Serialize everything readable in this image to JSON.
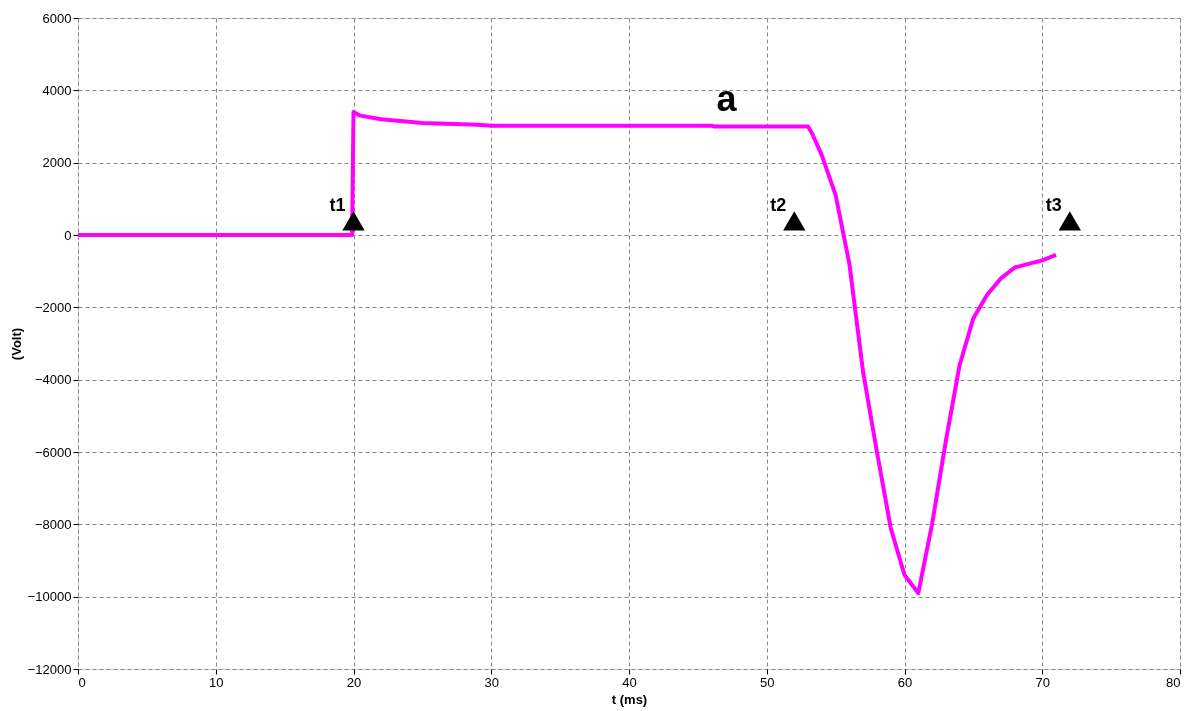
{
  "chart_data": {
    "type": "line",
    "xlabel": "t (ms)",
    "ylabel": "(Volt)",
    "xlim": [
      0,
      80
    ],
    "xticks": [
      0,
      10,
      20,
      30,
      40,
      50,
      60,
      70,
      80
    ],
    "ylim": [
      -12000,
      6000
    ],
    "yticks": [
      -12000,
      -10000,
      -8000,
      -6000,
      -4000,
      -2000,
      0,
      2000,
      4000,
      6000
    ],
    "grid": true,
    "series": [
      {
        "color": "#ff00ff",
        "marker": "none",
        "line_style": "solid",
        "x": [
          0,
          19.9,
          20,
          20.5,
          22,
          25,
          29,
          30,
          46,
          46.2,
          53,
          53.3,
          54,
          55,
          56,
          57,
          58,
          59,
          60,
          61,
          62,
          63,
          64,
          65,
          66,
          67,
          68,
          69,
          70,
          71
        ],
        "values": [
          0,
          0,
          3400,
          3300,
          3200,
          3100,
          3050,
          3020,
          3020,
          3000,
          3000,
          2800,
          2200,
          1100,
          -800,
          -3800,
          -6000,
          -8100,
          -9400,
          -9900,
          -8000,
          -5700,
          -3600,
          -2300,
          -1650,
          -1200,
          -900,
          -800,
          -700,
          -550
        ]
      },
      {
        "type": "scatter",
        "color": "#000000",
        "marker": "triangle",
        "x": [
          20,
          52,
          72
        ],
        "values": [
          300,
          300,
          300
        ]
      }
    ],
    "annotations": [
      "a",
      "t1",
      "t2",
      "t3"
    ]
  }
}
